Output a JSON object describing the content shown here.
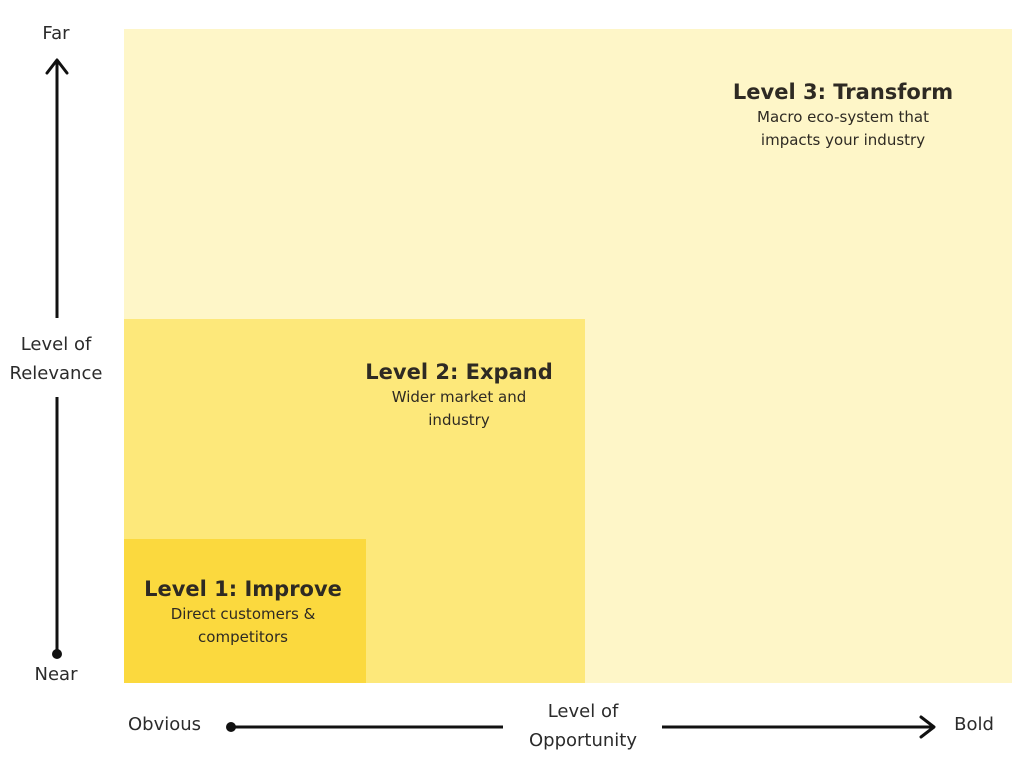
{
  "colors": {
    "level1": "#fbd93e",
    "level2": "#fde87a",
    "level3": "#fef6c8",
    "text": "#2e2a23",
    "axis": "#111111"
  },
  "levels": [
    {
      "title": "Level 1: Improve",
      "desc1": "Direct customers &",
      "desc2": "competitors"
    },
    {
      "title": "Level 2: Expand",
      "desc1": "Wider market and",
      "desc2": "industry"
    },
    {
      "title": "Level 3: Transform",
      "desc1": "Macro eco-system that",
      "desc2": "impacts your industry"
    }
  ],
  "y_axis": {
    "top": "Far",
    "bottom": "Near",
    "title_line1": "Level of",
    "title_line2": "Relevance"
  },
  "x_axis": {
    "left": "Obvious",
    "right": "Bold",
    "title_line1": "Level of",
    "title_line2": "Opportunity"
  }
}
